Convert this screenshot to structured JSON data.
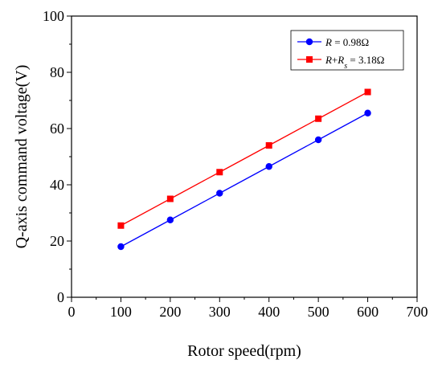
{
  "chart_data": {
    "type": "line",
    "xlabel": "Rotor speed(rpm)",
    "ylabel": "Q-axis command voltage(V)",
    "xlim": [
      0,
      700
    ],
    "ylim": [
      0,
      100
    ],
    "xticks": [
      0,
      100,
      200,
      300,
      400,
      500,
      600,
      700
    ],
    "yticks": [
      0,
      20,
      40,
      60,
      80,
      100
    ],
    "x": [
      100,
      200,
      300,
      400,
      500,
      600
    ],
    "grid": false,
    "legend_position": "top-right",
    "series": [
      {
        "name": "R = 0.98Ω",
        "legend_parts": [
          {
            "text": "R",
            "italic": true
          },
          {
            "text": " = 0.98Ω"
          }
        ],
        "values": [
          18,
          27.5,
          37,
          46.5,
          56,
          65.5
        ],
        "color": "#0000ff",
        "marker": "circle"
      },
      {
        "name": "R+Rs = 3.18Ω",
        "legend_parts": [
          {
            "text": "R",
            "italic": true
          },
          {
            "text": "+"
          },
          {
            "text": "R",
            "italic": true
          },
          {
            "text": "s",
            "italic": true,
            "sub": true
          },
          {
            "text": " = 3.18Ω"
          }
        ],
        "values": [
          25.5,
          35,
          44.5,
          54,
          63.5,
          73
        ],
        "color": "#ff0000",
        "marker": "square"
      }
    ]
  }
}
